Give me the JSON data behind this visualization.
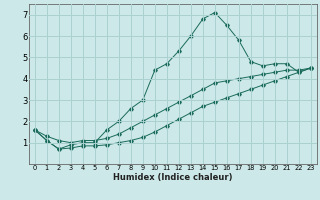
{
  "xlabel": "Humidex (Indice chaleur)",
  "ylabel": "",
  "bg_color": "#cce8e8",
  "grid_color": "#aad0d0",
  "line_color": "#1a6b5a",
  "x": [
    0,
    1,
    2,
    3,
    4,
    5,
    6,
    7,
    8,
    9,
    10,
    11,
    12,
    13,
    14,
    15,
    16,
    17,
    18,
    19,
    20,
    21,
    22,
    23
  ],
  "y_max": [
    1.6,
    1.1,
    0.7,
    0.9,
    1.0,
    1.0,
    1.6,
    2.0,
    2.6,
    3.0,
    4.4,
    4.7,
    5.3,
    6.0,
    6.8,
    7.1,
    6.5,
    5.8,
    4.8,
    4.6,
    4.7,
    4.7,
    4.3,
    4.5
  ],
  "y_diag": [
    1.6,
    1.3,
    1.1,
    1.0,
    1.1,
    1.1,
    1.2,
    1.4,
    1.7,
    2.0,
    2.3,
    2.6,
    2.9,
    3.2,
    3.5,
    3.8,
    3.9,
    4.0,
    4.1,
    4.2,
    4.3,
    4.4,
    4.4,
    4.5
  ],
  "y_min": [
    1.6,
    1.1,
    0.7,
    0.75,
    0.85,
    0.85,
    0.9,
    1.0,
    1.1,
    1.25,
    1.5,
    1.8,
    2.1,
    2.4,
    2.7,
    2.9,
    3.1,
    3.3,
    3.5,
    3.7,
    3.9,
    4.1,
    4.3,
    4.5
  ],
  "ylim": [
    0,
    7.5
  ],
  "xlim": [
    -0.5,
    23.5
  ],
  "yticks": [
    1,
    2,
    3,
    4,
    5,
    6,
    7
  ],
  "xticks": [
    0,
    1,
    2,
    3,
    4,
    5,
    6,
    7,
    8,
    9,
    10,
    11,
    12,
    13,
    14,
    15,
    16,
    17,
    18,
    19,
    20,
    21,
    22,
    23
  ],
  "xlabel_fontsize": 6.0,
  "tick_fontsize_x": 4.8,
  "tick_fontsize_y": 6.0
}
